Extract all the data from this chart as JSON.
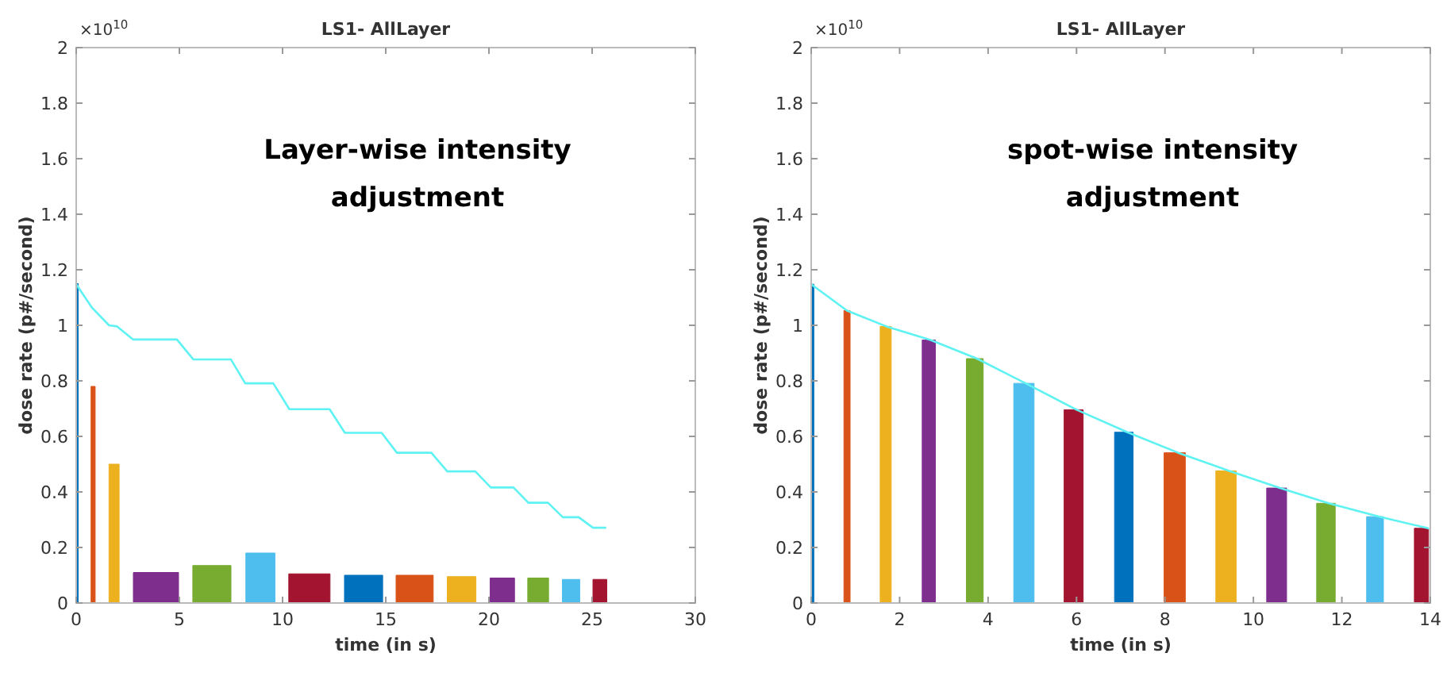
{
  "chart_data": [
    {
      "type": "area",
      "title": "LS1- AllLayer",
      "xlabel": "time (in s)",
      "ylabel": "dose rate (p#/second)",
      "annotations": [
        "×10$^{10}$",
        "Layer-wise intensity adjustment"
      ],
      "xlim": [
        0,
        30
      ],
      "xticks": [
        0,
        5,
        10,
        15,
        20,
        25,
        30
      ],
      "ylim": [
        0,
        2
      ],
      "yticks": [
        0,
        0.2,
        0.4,
        0.6,
        0.8,
        1,
        1.2,
        1.4,
        1.6,
        1.8,
        2
      ],
      "grid": false,
      "series": [
        {
          "color": "#0072bd",
          "x": [
            0,
            0.1
          ],
          "values": [
            1.15,
            1.15
          ]
        },
        {
          "color": "#d95319",
          "x": [
            0.72,
            0.92
          ],
          "values": [
            0.78,
            0.78
          ]
        },
        {
          "color": "#edb120",
          "x": [
            1.59,
            2.08
          ],
          "values": [
            0.5,
            0.5
          ]
        },
        {
          "color": "#7e2f8e",
          "x": [
            2.77,
            4.96
          ],
          "values": [
            0.11,
            0.11
          ]
        },
        {
          "color": "#77ac30",
          "x": [
            5.65,
            7.5
          ],
          "values": [
            0.135,
            0.135
          ]
        },
        {
          "color": "#4dbeee",
          "x": [
            8.22,
            9.63
          ],
          "values": [
            0.18,
            0.18
          ]
        },
        {
          "color": "#a2142f",
          "x": [
            10.3,
            12.3
          ],
          "values": [
            0.105,
            0.105
          ]
        },
        {
          "color": "#0072bd",
          "x": [
            13.0,
            14.85
          ],
          "values": [
            0.1,
            0.1
          ]
        },
        {
          "color": "#d95319",
          "x": [
            15.5,
            17.3
          ],
          "values": [
            0.1,
            0.1
          ]
        },
        {
          "color": "#edb120",
          "x": [
            17.98,
            19.37
          ],
          "values": [
            0.095,
            0.095
          ]
        },
        {
          "color": "#7e2f8e",
          "x": [
            20.06,
            21.24
          ],
          "values": [
            0.09,
            0.09
          ]
        },
        {
          "color": "#77ac30",
          "x": [
            21.88,
            22.89
          ],
          "values": [
            0.09,
            0.09
          ]
        },
        {
          "color": "#4dbeee",
          "x": [
            23.56,
            24.4
          ],
          "values": [
            0.085,
            0.085
          ]
        },
        {
          "color": "#a2142f",
          "x": [
            25.04,
            25.71
          ],
          "values": [
            0.085,
            0.085
          ]
        },
        {
          "type": "line",
          "color": "#5ff2f2",
          "x": [
            0,
            0.77,
            1.59,
            1.98,
            2.75,
            4.88,
            5.68,
            7.5,
            8.19,
            9.55,
            10.33,
            12.28,
            13.02,
            14.8,
            15.54,
            17.21,
            17.98,
            19.34,
            20.09,
            21.19,
            21.91,
            22.86,
            23.58,
            24.35,
            25.04,
            25.64
          ],
          "values": [
            1.148,
            1.063,
            1.0,
            0.996,
            0.949,
            0.949,
            0.877,
            0.877,
            0.791,
            0.791,
            0.698,
            0.698,
            0.613,
            0.613,
            0.541,
            0.541,
            0.474,
            0.474,
            0.416,
            0.416,
            0.361,
            0.361,
            0.309,
            0.309,
            0.271,
            0.271
          ]
        }
      ]
    },
    {
      "type": "area",
      "title": "LS1- AllLayer",
      "xlabel": "time (in s)",
      "ylabel": "dose rate (p#/second)",
      "annotations": [
        "×10$^{10}$",
        "spot-wise intensity adjustment"
      ],
      "xlim": [
        0,
        14
      ],
      "xticks": [
        0,
        2,
        4,
        6,
        8,
        10,
        12,
        14
      ],
      "ylim": [
        0,
        2
      ],
      "yticks": [
        0,
        0.2,
        0.4,
        0.6,
        0.8,
        1,
        1.2,
        1.4,
        1.6,
        1.8,
        2
      ],
      "grid": false,
      "series": [
        {
          "color": "#0072bd",
          "x": [
            0,
            0.06
          ],
          "values": [
            1.148,
            1.148
          ]
        },
        {
          "color": "#d95319",
          "x": [
            0.74,
            0.88
          ],
          "values": [
            1.053,
            1.053
          ]
        },
        {
          "color": "#edb120",
          "x": [
            1.56,
            1.81
          ],
          "values": [
            0.996,
            0.996
          ]
        },
        {
          "color": "#7e2f8e",
          "x": [
            2.51,
            2.81
          ],
          "values": [
            0.947,
            0.947
          ]
        },
        {
          "color": "#77ac30",
          "x": [
            3.51,
            3.89
          ],
          "values": [
            0.88,
            0.88
          ]
        },
        {
          "color": "#4dbeee",
          "x": [
            4.58,
            5.04
          ],
          "values": [
            0.791,
            0.791
          ]
        },
        {
          "color": "#a2142f",
          "x": [
            5.72,
            6.15
          ],
          "values": [
            0.696,
            0.696
          ]
        },
        {
          "color": "#0072bd",
          "x": [
            6.86,
            7.28
          ],
          "values": [
            0.615,
            0.615
          ]
        },
        {
          "color": "#d95319",
          "x": [
            7.98,
            8.46
          ],
          "values": [
            0.541,
            0.541
          ]
        },
        {
          "color": "#edb120",
          "x": [
            9.15,
            9.61
          ],
          "values": [
            0.476,
            0.476
          ]
        },
        {
          "color": "#7e2f8e",
          "x": [
            10.3,
            10.75
          ],
          "values": [
            0.414,
            0.414
          ]
        },
        {
          "color": "#77ac30",
          "x": [
            11.43,
            11.85
          ],
          "values": [
            0.359,
            0.359
          ]
        },
        {
          "color": "#4dbeee",
          "x": [
            12.56,
            12.94
          ],
          "values": [
            0.311,
            0.311
          ]
        },
        {
          "color": "#a2142f",
          "x": [
            13.64,
            13.96
          ],
          "values": [
            0.269,
            0.269
          ]
        },
        {
          "type": "line",
          "color": "#5ff2f2",
          "x": [
            0,
            0.81,
            1.7,
            2.7,
            3.75,
            4.85,
            6.0,
            7.15,
            8.3,
            9.45,
            10.6,
            11.7,
            12.85,
            13.95
          ],
          "values": [
            1.148,
            1.053,
            0.996,
            0.947,
            0.88,
            0.791,
            0.696,
            0.615,
            0.541,
            0.476,
            0.414,
            0.359,
            0.311,
            0.269
          ]
        }
      ]
    }
  ]
}
